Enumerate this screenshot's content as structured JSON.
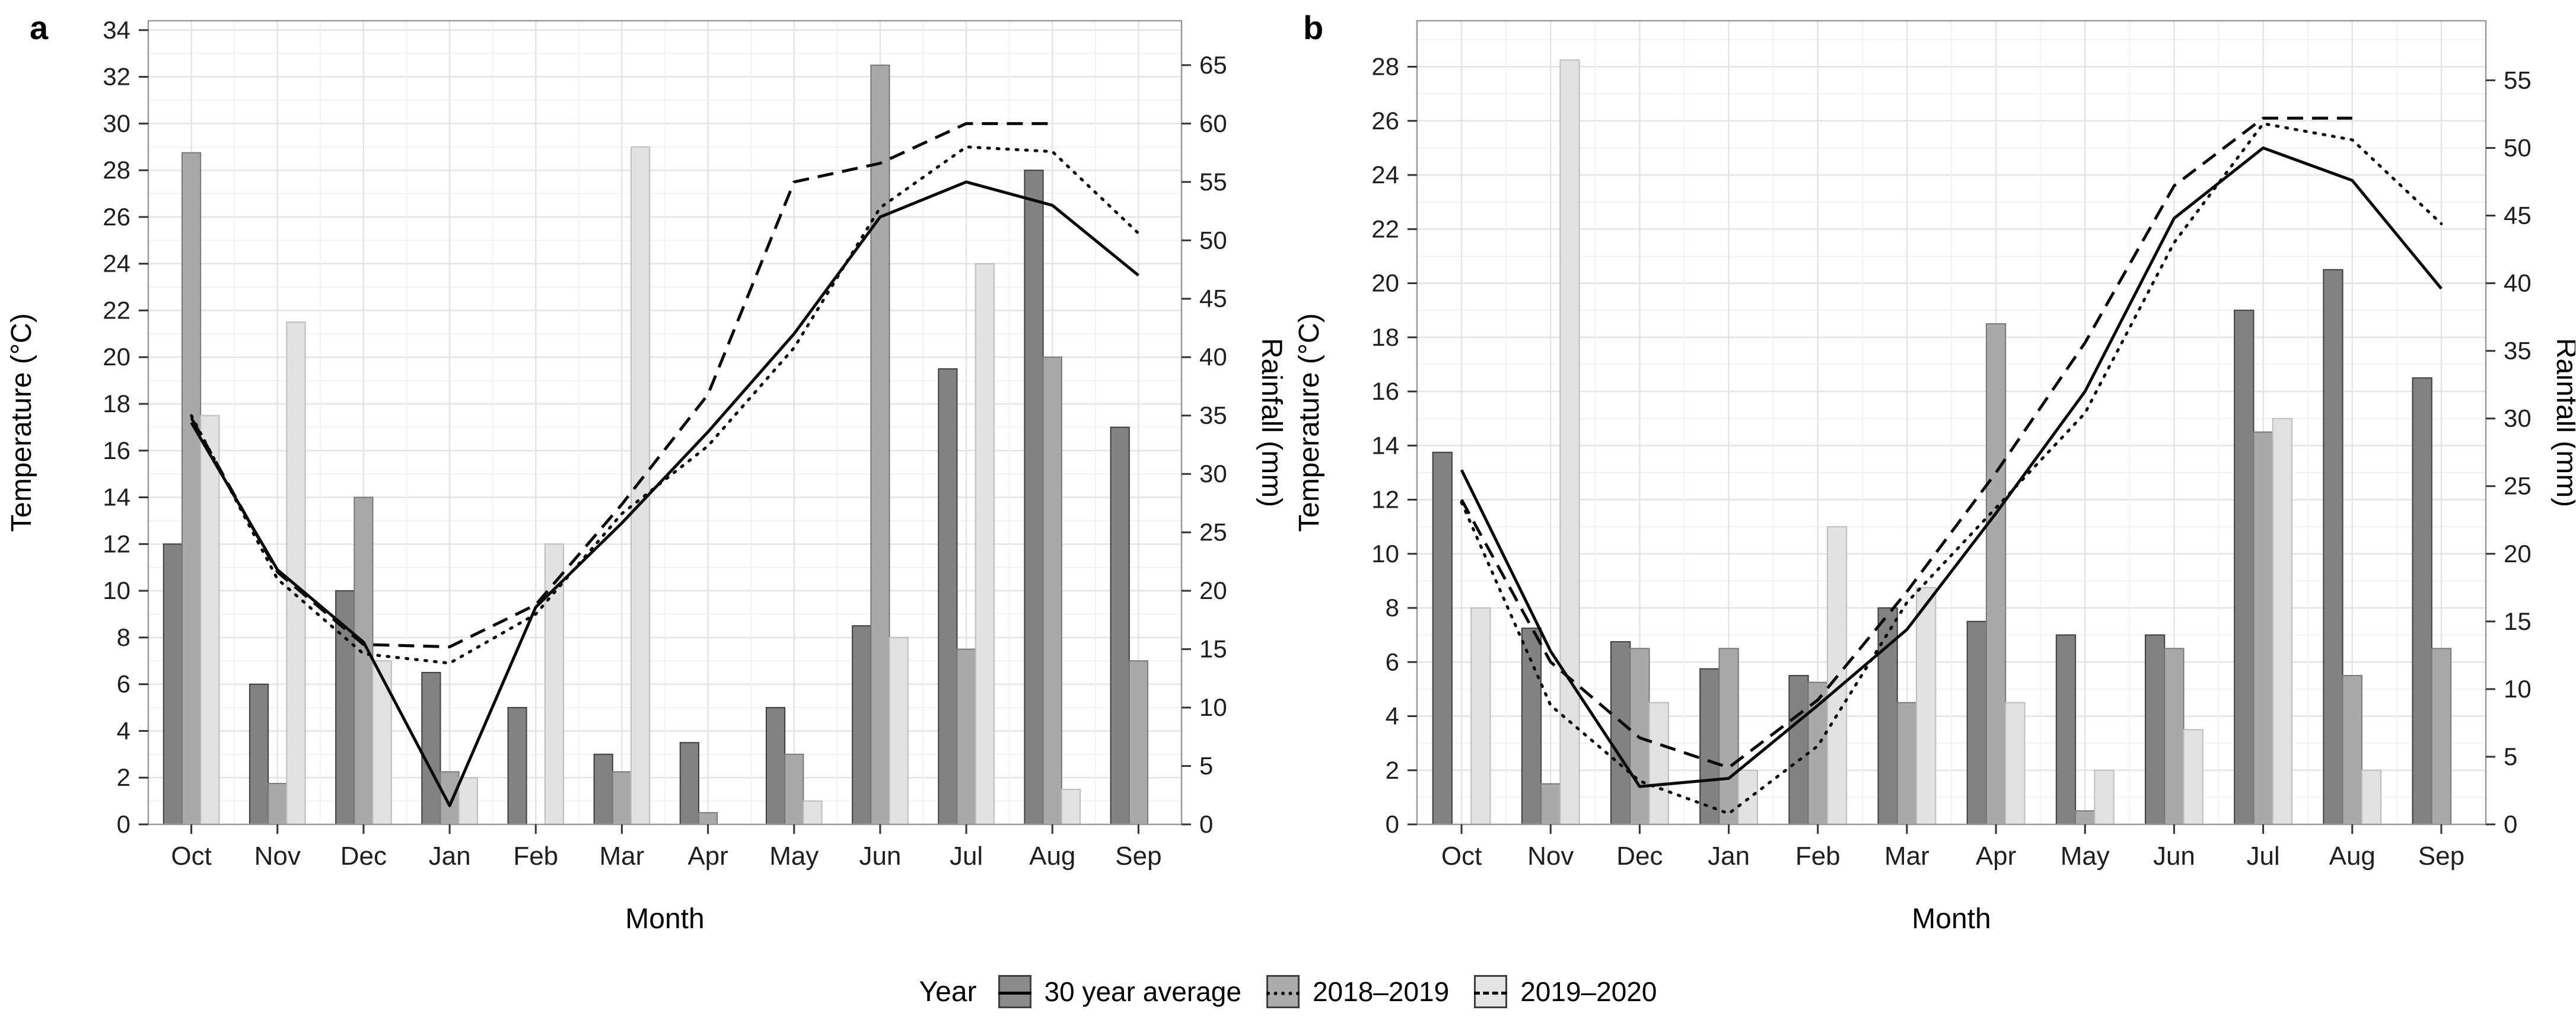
{
  "figure": {
    "panel_a_tag": "a",
    "panel_b_tag": "b"
  },
  "style": {
    "bar_fills": [
      "#828282",
      "#a9a9a9",
      "#e2e2e2"
    ],
    "bar_strokes": [
      "#3f3f3f",
      "#787878",
      "#bdbdbd"
    ],
    "line_color": "#0a0a0a",
    "grid_major_color": "#e4e4e4",
    "grid_minor_color": "#f1f1f1",
    "panel_border_color": "#999999",
    "tick_color": "#333333",
    "text_color": "#1f1f1f"
  },
  "legend": {
    "title": "Year",
    "entries": [
      {
        "label": "30 year average",
        "fill": "#8a8a8a",
        "line_style": "solid"
      },
      {
        "label": "2018–2019",
        "fill": "#ababab",
        "line_style": "dotted"
      },
      {
        "label": "2019–2020",
        "fill": "#e4e4e4",
        "line_style": "dashed"
      }
    ]
  },
  "chart_data": [
    {
      "panel_tag": "a",
      "type": "bar+line",
      "months": [
        "Oct",
        "Nov",
        "Dec",
        "Jan",
        "Feb",
        "Mar",
        "Apr",
        "May",
        "Jun",
        "Jul",
        "Aug",
        "Sep"
      ],
      "xlabel": "Month",
      "left_axis": {
        "label": "Temperature (°C)",
        "min": 0,
        "max": 34,
        "tick_step": 2,
        "top_value": 34.4
      },
      "right_axis": {
        "label": "Rainfall (mm)",
        "min": 0,
        "max": 65,
        "tick_step": 5,
        "mm_per_degree": 2
      },
      "rainfall_bars_mm": {
        "series": [
          {
            "name": "30 year average",
            "values": [
              24,
              12,
              20,
              13,
              10,
              6,
              7,
              10,
              17,
              39,
              56,
              34
            ]
          },
          {
            "name": "2018–2019",
            "values": [
              57.5,
              3.5,
              28,
              4.5,
              0,
              4.5,
              1,
              6,
              65,
              15,
              40,
              14
            ]
          },
          {
            "name": "2019–2020",
            "values": [
              35,
              43,
              14,
              4,
              24,
              58,
              0,
              2,
              16,
              48,
              3,
              0
            ]
          }
        ]
      },
      "temperature_lines_c": {
        "series": [
          {
            "name": "30 year average",
            "style": "solid",
            "values": [
              17.2,
              10.9,
              7.8,
              0.8,
              9.3,
              12.9,
              16.8,
              21.0,
              26.0,
              27.5,
              26.5,
              23.5
            ]
          },
          {
            "name": "2018–2019",
            "style": "dotted",
            "values": [
              17.5,
              10.5,
              7.3,
              6.9,
              9.0,
              13.3,
              16.2,
              20.4,
              26.4,
              29.0,
              28.8,
              25.3
            ]
          },
          {
            "name": "2019–2020",
            "style": "dashed",
            "values": [
              17.4,
              10.8,
              7.7,
              7.6,
              9.4,
              13.7,
              18.4,
              27.5,
              28.3,
              30.0,
              30.0,
              null
            ]
          }
        ]
      }
    },
    {
      "panel_tag": "b",
      "type": "bar+line",
      "months": [
        "Oct",
        "Nov",
        "Dec",
        "Jan",
        "Feb",
        "Mar",
        "Apr",
        "May",
        "Jun",
        "Jul",
        "Aug",
        "Sep"
      ],
      "xlabel": "Month",
      "left_axis": {
        "label": "Temperature (°C)",
        "min": 0,
        "max": 28,
        "tick_step": 2,
        "top_value": 29.7
      },
      "right_axis": {
        "label": "Rainfall (mm)",
        "min": 0,
        "max": 55,
        "tick_step": 5,
        "mm_per_degree": 2
      },
      "rainfall_bars_mm": {
        "series": [
          {
            "name": "30 year average",
            "values": [
              27.5,
              14.5,
              13.5,
              11.5,
              11,
              16,
              15,
              14,
              14,
              38,
              41,
              33
            ]
          },
          {
            "name": "2018–2019",
            "values": [
              0,
              3,
              13,
              13,
              10.5,
              9,
              37,
              1,
              13,
              29,
              11,
              13
            ]
          },
          {
            "name": "2019–2020",
            "values": [
              16,
              56.5,
              9,
              4,
              22,
              17.5,
              9,
              4,
              7,
              30,
              4,
              0
            ]
          }
        ]
      },
      "temperature_lines_c": {
        "series": [
          {
            "name": "30 year average",
            "style": "solid",
            "values": [
              13.1,
              6.4,
              1.4,
              1.7,
              4.4,
              7.2,
              11.5,
              16.0,
              22.4,
              25.0,
              23.8,
              19.8
            ]
          },
          {
            "name": "2018–2019",
            "style": "dotted",
            "values": [
              11.9,
              4.4,
              1.6,
              0.4,
              2.9,
              8.2,
              11.7,
              15.2,
              21.5,
              25.9,
              25.3,
              22.2
            ]
          },
          {
            "name": "2019–2020",
            "style": "dashed",
            "values": [
              12.0,
              6.0,
              3.2,
              2.1,
              4.6,
              8.6,
              13.0,
              17.8,
              23.6,
              26.1,
              26.1,
              null
            ]
          }
        ]
      }
    }
  ]
}
